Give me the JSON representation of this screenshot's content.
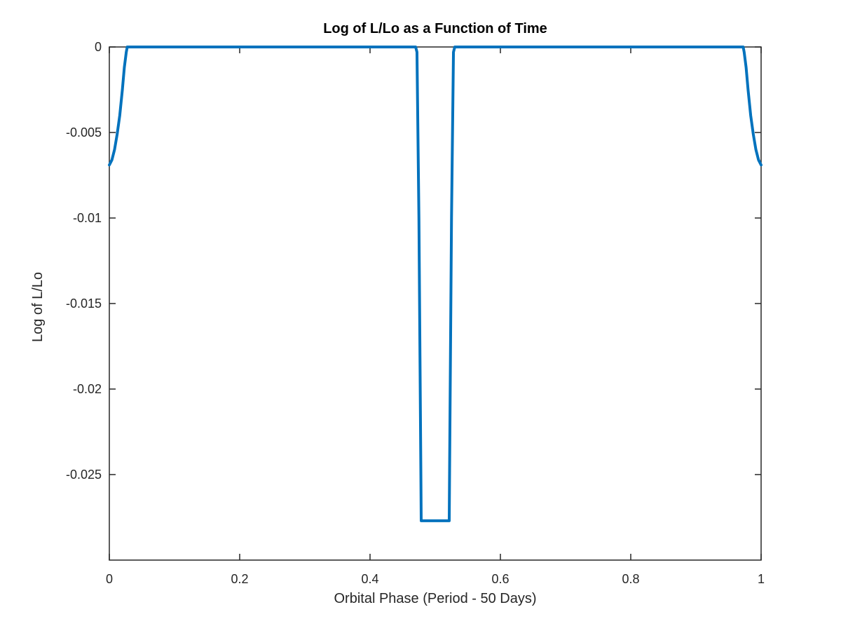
{
  "chart_data": {
    "type": "line",
    "title": "Log of L/Lo as a Function of Time",
    "xlabel": "Orbital Phase (Period - 50 Days)",
    "ylabel": "Log of L/Lo",
    "xlim": [
      0,
      1
    ],
    "ylim": [
      -0.03,
      0
    ],
    "xticks": [
      0,
      0.2,
      0.4,
      0.6,
      0.8,
      1
    ],
    "xtick_labels": [
      "0",
      "0.2",
      "0.4",
      "0.6",
      "0.8",
      "1"
    ],
    "yticks": [
      0,
      -0.005,
      -0.01,
      -0.015,
      -0.02,
      -0.025
    ],
    "ytick_labels": [
      "0",
      "-0.005",
      "-0.01",
      "-0.015",
      "-0.02",
      "-0.025"
    ],
    "grid": false,
    "legend": "none",
    "series": [
      {
        "color": "#0072BD",
        "x": [
          0,
          0.004,
          0.008,
          0.012,
          0.016,
          0.02,
          0.023,
          0.026,
          0.0275,
          0.03,
          0.1,
          0.2,
          0.3,
          0.4,
          0.47,
          0.472,
          0.475,
          0.478,
          0.4785,
          0.5,
          0.5215,
          0.522,
          0.525,
          0.528,
          0.53,
          0.6,
          0.7,
          0.8,
          0.9,
          0.97,
          0.9725,
          0.974,
          0.977,
          0.98,
          0.984,
          0.988,
          0.992,
          0.996,
          1.0
        ],
        "y": [
          -0.0069,
          -0.0066,
          -0.006,
          -0.0051,
          -0.004,
          -0.0025,
          -0.0012,
          -0.0003,
          0,
          0,
          0,
          0,
          0,
          0,
          0,
          -0.0003,
          -0.01,
          -0.025,
          -0.0277,
          -0.0277,
          -0.0277,
          -0.025,
          -0.01,
          -0.0003,
          0,
          0,
          0,
          0,
          0,
          0,
          0,
          -0.0003,
          -0.0012,
          -0.0025,
          -0.004,
          -0.0051,
          -0.006,
          -0.0066,
          -0.0069
        ]
      }
    ]
  }
}
